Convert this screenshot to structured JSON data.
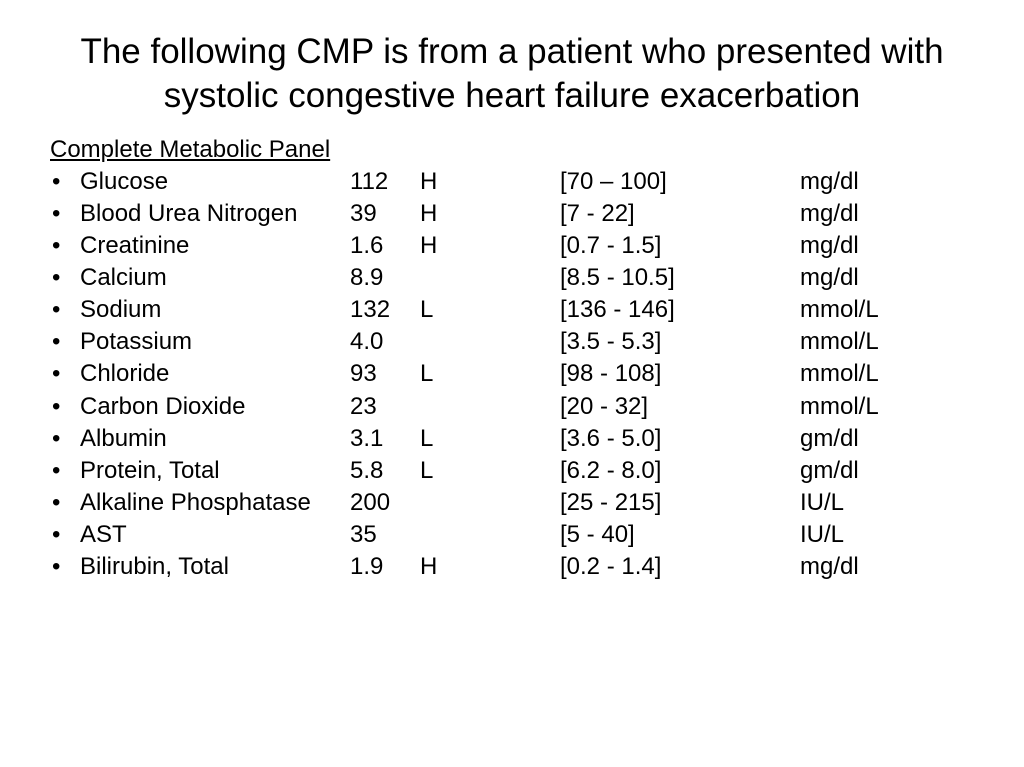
{
  "title": "The following CMP is from a patient who presented with systolic congestive heart failure exacerbation",
  "panel_title": "Complete Metabolic Panel",
  "bullet_glyph": "•",
  "text_color": "#000000",
  "background_color": "#ffffff",
  "title_fontsize": 35,
  "body_fontsize": 24,
  "columns": {
    "bullet_width": 30,
    "analyte_width": 270,
    "value_width": 70,
    "flag_width": 140,
    "range_width": 240
  },
  "rows": [
    {
      "analyte": "Glucose",
      "value": "112",
      "flag": "H",
      "range": "[70 – 100]",
      "units": "mg/dl"
    },
    {
      "analyte": "Blood Urea Nitrogen",
      "value": "39",
      "flag": "H",
      "range": "[7 - 22]",
      "units": "mg/dl"
    },
    {
      "analyte": "Creatinine",
      "value": "1.6",
      "flag": "H",
      "range": "[0.7 - 1.5]",
      "units": "mg/dl"
    },
    {
      "analyte": "Calcium",
      "value": "8.9",
      "flag": "",
      "range": "[8.5 - 10.5]",
      "units": "mg/dl"
    },
    {
      "analyte": "Sodium",
      "value": "132",
      "flag": " L",
      "range": "[136 - 146]",
      "units": "mmol/L"
    },
    {
      "analyte": "Potassium",
      "value": "4.0",
      "flag": "",
      "range": "[3.5 - 5.3]",
      "units": "mmol/L"
    },
    {
      "analyte": "Chloride",
      "value": "93",
      "flag": " L",
      "range": "[98 - 108]",
      "units": "mmol/L"
    },
    {
      "analyte": "Carbon Dioxide",
      "value": "23",
      "flag": "",
      "range": "[20 - 32]",
      "units": "mmol/L"
    },
    {
      "analyte": "Albumin",
      "value": "3.1",
      "flag": " L",
      "range": "[3.6 - 5.0]",
      "units": "gm/dl"
    },
    {
      "analyte": "Protein, Total",
      "value": "5.8",
      "flag": " L",
      "range": "[6.2 - 8.0]",
      "units": "gm/dl"
    },
    {
      "analyte": "Alkaline Phosphatase",
      "value": "200",
      "flag": "",
      "range": "[25 - 215]",
      "units": "IU/L"
    },
    {
      "analyte": "AST",
      "value": "35",
      "flag": "",
      "range": "[5 - 40]",
      "units": "IU/L"
    },
    {
      "analyte": "Bilirubin, Total",
      "value": "1.9",
      "flag": "H",
      "range": "[0.2 - 1.4]",
      "units": "mg/dl"
    }
  ]
}
